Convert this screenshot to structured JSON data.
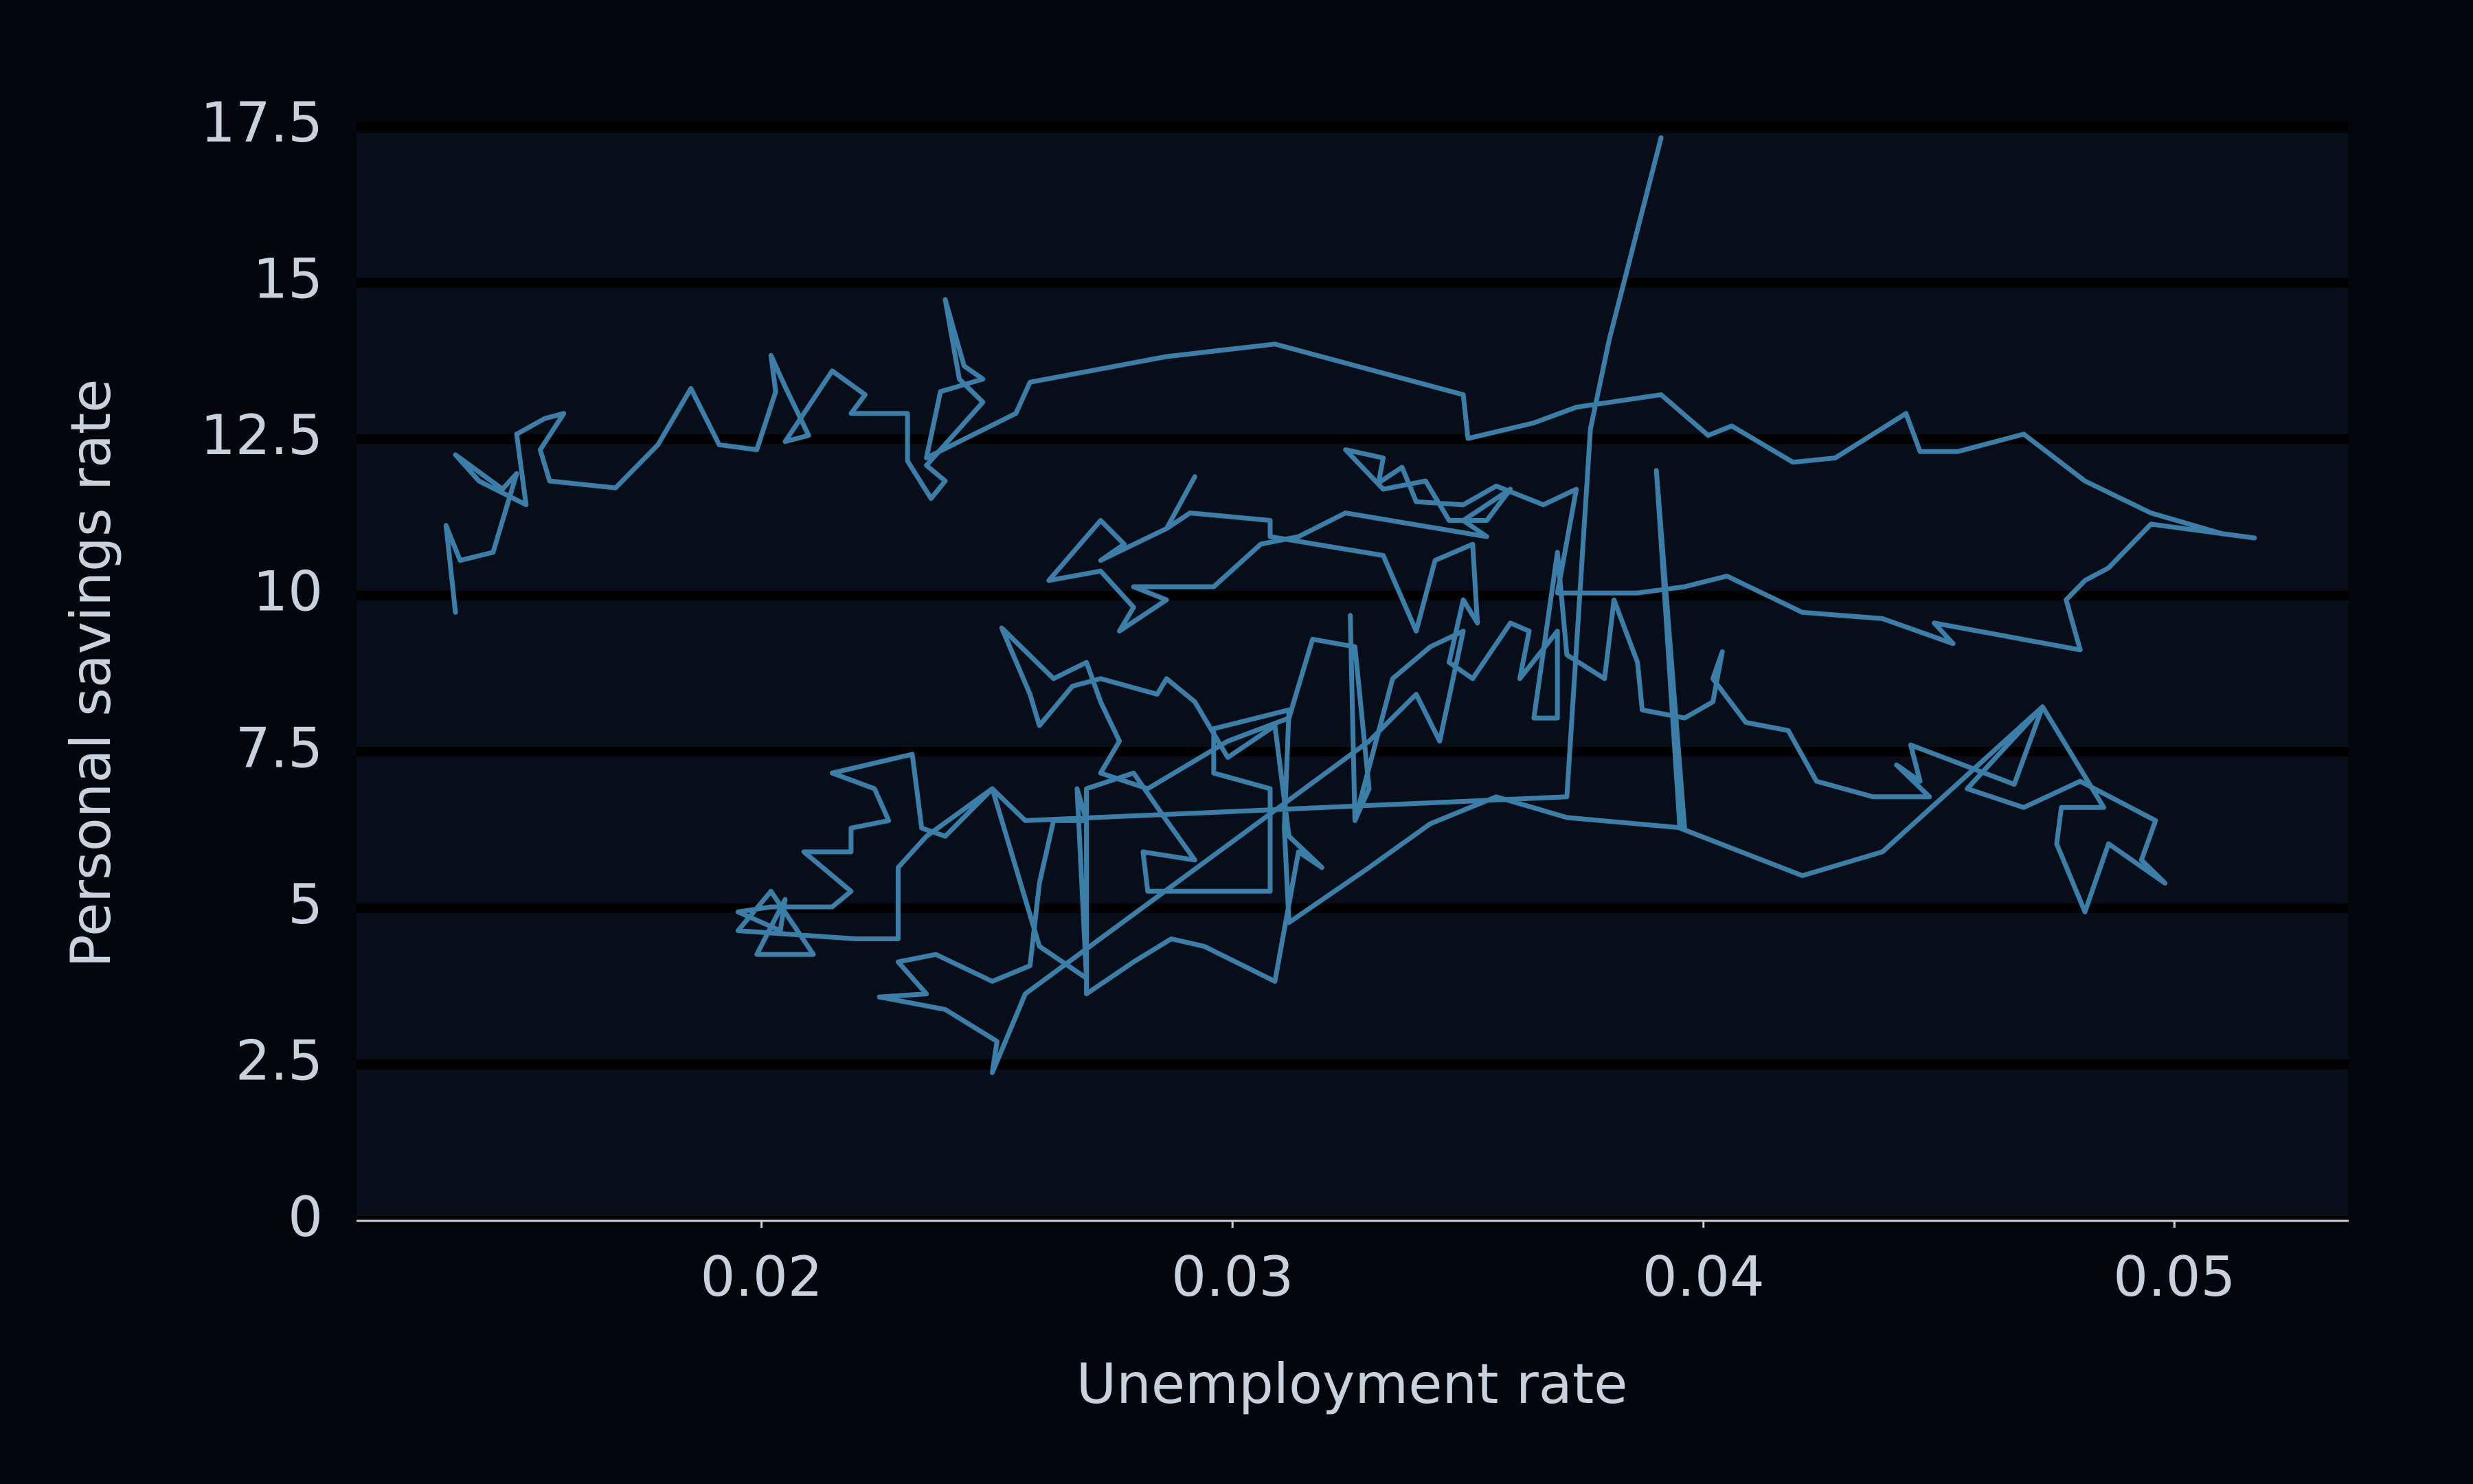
{
  "chart_data": {
    "type": "line",
    "x_label": "Unemployment rate",
    "y_label": "Personal savings rate",
    "color": "#3b7ea8",
    "grid": true,
    "xlim": [
      0.0114,
      0.0537
    ],
    "xticks": [
      0.02,
      0.03,
      0.04,
      0.05
    ],
    "ylim": [
      0,
      17.5
    ],
    "yticks": [
      0,
      2.5,
      5,
      7.5,
      10,
      12.5,
      15,
      17.5
    ],
    "x": [
      0.0135,
      0.0133,
      0.0136,
      0.0143,
      0.0148,
      0.0145,
      0.0135,
      0.014,
      0.015,
      0.0148,
      0.0154,
      0.0158,
      0.0153,
      0.0155,
      0.0169,
      0.0178,
      0.0185,
      0.0191,
      0.0199,
      0.0203,
      0.0202,
      0.0205,
      0.021,
      0.0205,
      0.0215,
      0.0222,
      0.0219,
      0.0231,
      0.0231,
      0.0236,
      0.0239,
      0.0235,
      0.0247,
      0.0242,
      0.0239,
      0.0243,
      0.0247,
      0.0238,
      0.0235,
      0.0254,
      0.0257,
      0.0286,
      0.0309,
      0.0349,
      0.035,
      0.0364,
      0.0373,
      0.0391,
      0.0401,
      0.0406,
      0.0419,
      0.0428,
      0.0443,
      0.0446,
      0.0454,
      0.0468,
      0.0481,
      0.0495,
      0.051,
      0.0517,
      0.0495,
      0.0486,
      0.0481,
      0.0477,
      0.048,
      0.0449,
      0.0453,
      0.0438,
      0.0421,
      0.0405,
      0.0396,
      0.0386,
      0.0369,
      0.0373,
      0.0366,
      0.0356,
      0.0349,
      0.0339,
      0.0336,
      0.0331,
      0.0332,
      0.0324,
      0.0332,
      0.0341,
      0.0346,
      0.0354,
      0.0359,
      0.0349,
      0.0354,
      0.0324,
      0.0314,
      0.0306,
      0.0296,
      0.0279,
      0.0286,
      0.0276,
      0.0279,
      0.0272,
      0.0261,
      0.0272,
      0.0277,
      0.0272,
      0.0286,
      0.0292,
      0.0286,
      0.0291,
      0.0308,
      0.0308,
      0.0332,
      0.0339,
      0.0343,
      0.0351,
      0.0352,
      0.0349,
      0.0346,
      0.0351,
      0.0359,
      0.0363,
      0.0361,
      0.0369,
      0.0369,
      0.0364,
      0.0369,
      0.0371,
      0.0379,
      0.0381,
      0.0386,
      0.0387,
      0.0396,
      0.0402,
      0.0404,
      0.0402,
      0.0409,
      0.0418,
      0.0424,
      0.0436,
      0.0448,
      0.0441,
      0.0446,
      0.0444,
      0.0466,
      0.0472,
      0.0456,
      0.0468,
      0.048,
      0.0496,
      0.0493,
      0.0498,
      0.0486,
      0.0481,
      0.0475,
      0.0476,
      0.0485,
      0.0472,
      0.0438,
      0.0421,
      0.0395,
      0.039,
      0.0396,
      0.0371,
      0.0356,
      0.0342,
      0.0329,
      0.0312,
      0.0311,
      0.0312,
      0.0296,
      0.0296,
      0.0308,
      0.0308,
      0.0282,
      0.0281,
      0.0292,
      0.0286,
      0.0279,
      0.0269,
      0.0269,
      0.0279,
      0.0287,
      0.0294,
      0.0309,
      0.0314,
      0.0319,
      0.0312,
      0.0309,
      0.0299,
      0.0292,
      0.0286,
      0.0284,
      0.0272,
      0.0266,
      0.0259,
      0.0257,
      0.0251,
      0.0262,
      0.0269,
      0.0272,
      0.0276,
      0.0272,
      0.0282,
      0.0299,
      0.0312,
      0.0317,
      0.0326,
      0.0329,
      0.0326,
      0.0325,
      0.0326,
      0.0334,
      0.0342,
      0.0349,
      0.0344,
      0.0339,
      0.0329,
      0.0256,
      0.0249,
      0.025,
      0.0239,
      0.0225,
      0.0235,
      0.0229,
      0.0237,
      0.0249,
      0.0257,
      0.0259,
      0.0262,
      0.0269,
      0.0267,
      0.0269,
      0.0259,
      0.0249,
      0.0239,
      0.0234,
      0.0232,
      0.0215,
      0.0224,
      0.0227,
      0.0219,
      0.0219,
      0.0209,
      0.0219,
      0.0215,
      0.0202,
      0.0195,
      0.0204,
      0.0205,
      0.0199,
      0.0211,
      0.0202,
      0.0195,
      0.022,
      0.0229,
      0.0229,
      0.0235,
      0.0249,
      0.0256,
      0.0371,
      0.0376,
      0.038,
      0.0391
    ],
    "values": [
      9.73,
      11.12,
      10.56,
      10.69,
      11.95,
      11.7,
      12.25,
      11.83,
      11.45,
      12.58,
      12.83,
      12.91,
      12.33,
      11.83,
      11.72,
      12.41,
      13.31,
      12.41,
      12.33,
      13.26,
      13.84,
      13.34,
      12.56,
      12.46,
      13.59,
      13.21,
      12.91,
      12.91,
      12.15,
      11.55,
      11.83,
      12.08,
      13.09,
      13.46,
      14.73,
      13.67,
      13.46,
      13.26,
      12.2,
      12.91,
      13.41,
      13.82,
      14.02,
      13.21,
      12.51,
      12.76,
      13.01,
      13.21,
      12.56,
      12.71,
      12.13,
      12.2,
      12.91,
      12.3,
      12.3,
      12.58,
      11.83,
      11.32,
      10.99,
      10.92,
      11.14,
      10.44,
      10.24,
      9.93,
      9.13,
      9.56,
      9.23,
      9.63,
      9.73,
      10.31,
      10.14,
      10.04,
      10.04,
      11.7,
      11.45,
      11.75,
      11.45,
      11.5,
      12.05,
      11.8,
      12.2,
      12.33,
      11.7,
      11.83,
      11.2,
      11.2,
      11.7,
      11.2,
      10.94,
      11.32,
      10.94,
      10.82,
      10.14,
      10.14,
      9.93,
      9.43,
      9.81,
      10.39,
      10.24,
      11.2,
      10.82,
      10.56,
      11.07,
      11.9,
      11.07,
      11.32,
      11.2,
      10.94,
      10.64,
      9.43,
      10.56,
      10.82,
      9.56,
      9.93,
      8.93,
      8.67,
      9.56,
      9.43,
      8.67,
      9.43,
      8.04,
      8.04,
      10.69,
      9.05,
      8.67,
      9.93,
      8.93,
      8.17,
      8.04,
      8.3,
      9.1,
      8.67,
      7.97,
      7.84,
      7.03,
      6.78,
      6.78,
      7.29,
      7.03,
      7.61,
      6.98,
      8.22,
      6.91,
      6.61,
      7.03,
      6.4,
      5.77,
      5.4,
      6.03,
      4.94,
      6.03,
      6.61,
      6.61,
      8.22,
      5.9,
      5.52,
      6.28,
      12.0,
      6.28,
      6.45,
      6.78,
      6.35,
      5.65,
      4.77,
      6.28,
      8.17,
      7.87,
      7.16,
      6.91,
      5.27,
      5.27,
      5.9,
      5.77,
      6.4,
      7.16,
      6.91,
      3.63,
      4.14,
      4.51,
      4.39,
      3.83,
      5.9,
      5.65,
      6.15,
      7.92,
      7.41,
      8.3,
      8.67,
      8.42,
      8.67,
      8.55,
      7.92,
      8.42,
      9.48,
      8.67,
      8.93,
      8.3,
      7.67,
      7.16,
      6.91,
      7.67,
      8.04,
      9.3,
      9.18,
      6.91,
      6.4,
      9.68,
      6.4,
      8.67,
      9.18,
      9.43,
      7.67,
      8.42,
      7.67,
      3.63,
      2.37,
      2.87,
      3.38,
      3.58,
      3.63,
      4.14,
      4.26,
      3.83,
      4.08,
      5.4,
      6.4,
      6.4,
      6.91,
      3.88,
      4.39,
      6.91,
      6.15,
      6.28,
      7.46,
      7.16,
      6.91,
      6.4,
      6.28,
      5.9,
      5.9,
      5.27,
      5.02,
      5.02,
      4.94,
      4.64,
      5.14,
      4.26,
      4.26,
      5.27,
      4.64,
      4.51,
      4.51,
      5.65,
      6.15,
      6.91,
      6.4,
      6.78,
      12.66,
      14.09,
      17.32
    ]
  }
}
